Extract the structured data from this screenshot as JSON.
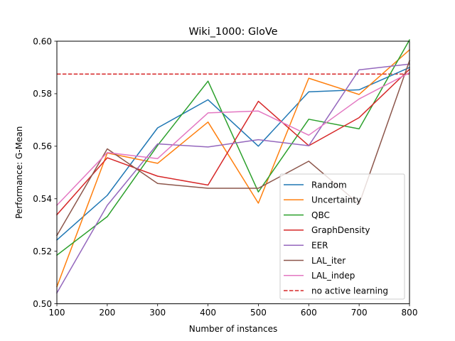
{
  "chart_data": {
    "type": "line",
    "title": "Wiki_1000: GloVe",
    "xlabel": "Number of instances",
    "ylabel": "Performance: G-Mean",
    "xlim": [
      100,
      800
    ],
    "ylim": [
      0.5,
      0.6
    ],
    "x_ticks": [
      100,
      200,
      300,
      400,
      500,
      600,
      700,
      800
    ],
    "x_tick_labels": [
      "100",
      "200",
      "300",
      "400",
      "500",
      "600",
      "700",
      "800"
    ],
    "y_ticks": [
      0.5,
      0.52,
      0.54,
      0.56,
      0.58,
      0.6
    ],
    "y_tick_labels": [
      "0.50",
      "0.52",
      "0.54",
      "0.56",
      "0.58",
      "0.60"
    ],
    "grid": false,
    "legend_position": "lower-right",
    "x": [
      100,
      200,
      300,
      400,
      500,
      600,
      700,
      800
    ],
    "series": [
      {
        "name": "Random",
        "color": "#1f77b4",
        "values": [
          0.5243,
          0.5413,
          0.567,
          0.5777,
          0.56,
          0.5807,
          0.5815,
          0.59
        ]
      },
      {
        "name": "Uncertainty",
        "color": "#ff7f0e",
        "values": [
          0.5065,
          0.5574,
          0.5535,
          0.5692,
          0.5383,
          0.5859,
          0.5797,
          0.5967
        ]
      },
      {
        "name": "QBC",
        "color": "#2ca02c",
        "values": [
          0.5185,
          0.5332,
          0.5603,
          0.5848,
          0.5426,
          0.5703,
          0.5666,
          0.6005
        ]
      },
      {
        "name": "GraphDensity",
        "color": "#d62728",
        "values": [
          0.5339,
          0.5556,
          0.5486,
          0.5452,
          0.5771,
          0.5602,
          0.5709,
          0.5893
        ]
      },
      {
        "name": "EER",
        "color": "#9467bd",
        "values": [
          0.5041,
          0.5375,
          0.5609,
          0.5597,
          0.5625,
          0.5602,
          0.5891,
          0.5913
        ]
      },
      {
        "name": "LAL_iter",
        "color": "#8c564b",
        "values": [
          0.526,
          0.559,
          0.5458,
          0.544,
          0.544,
          0.5543,
          0.538,
          0.5926
        ]
      },
      {
        "name": "LAL_indep",
        "color": "#e377c2",
        "values": [
          0.5375,
          0.5576,
          0.5553,
          0.5727,
          0.5734,
          0.5642,
          0.578,
          0.588
        ]
      }
    ],
    "reference_line": {
      "name": "no active learning",
      "color": "#d62728",
      "style": "dashed",
      "value": 0.5875
    }
  }
}
